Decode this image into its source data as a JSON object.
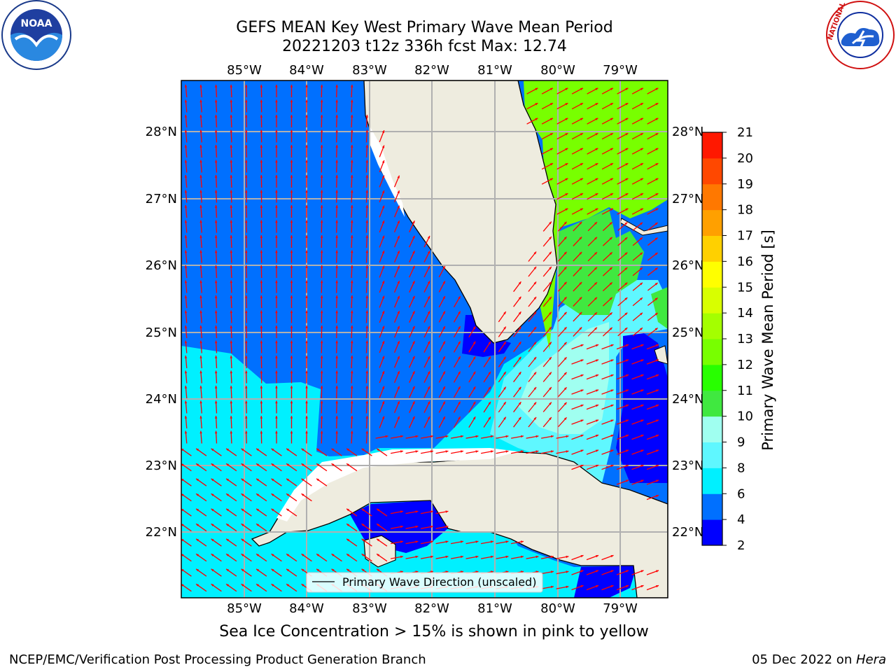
{
  "title": {
    "line1": "GEFS MEAN Key West Primary Wave Mean Period",
    "line2": "20221203 t12z 336h fcst   Max: 12.74"
  },
  "map": {
    "lon_ticks": [
      "85°W",
      "84°W",
      "83°W",
      "82°W",
      "81°W",
      "80°W",
      "79°W"
    ],
    "lat_ticks": [
      "28°N",
      "27°N",
      "26°N",
      "25°N",
      "24°N",
      "23°N",
      "22°N"
    ],
    "legend_label": "Primary Wave Direction (unscaled)",
    "colors": {
      "land": "#eeecdf",
      "coast": "#000000",
      "grid": "#b0b0b0",
      "arrow": "#ff0000"
    }
  },
  "colorbar": {
    "label": "Primary Wave Mean Period [s]",
    "ticks": [
      "2",
      "4",
      "6",
      "8",
      "9",
      "10",
      "11",
      "12",
      "13",
      "14",
      "15",
      "16",
      "17",
      "18",
      "19",
      "20",
      "21"
    ],
    "colors": [
      "#0000ff",
      "#0070ff",
      "#00f0ff",
      "#5ff7ff",
      "#a0fff0",
      "#40e840",
      "#28ff00",
      "#78ff00",
      "#a4ff00",
      "#d8ff00",
      "#ffff00",
      "#ffd000",
      "#ffa000",
      "#ff7800",
      "#ff4800",
      "#ff1800"
    ]
  },
  "footer": {
    "sea_ice": "Sea Ice Concentration > 15% is shown in pink to yellow",
    "branch": "NCEP/EMC/Verification Post Processing Product Generation Branch",
    "date": "05 Dec 2022 on ",
    "machine": "Hera"
  },
  "logos": {
    "noaa_text": "NOAA",
    "nws_text": "NATIONAL WEATHER SERVICE"
  }
}
